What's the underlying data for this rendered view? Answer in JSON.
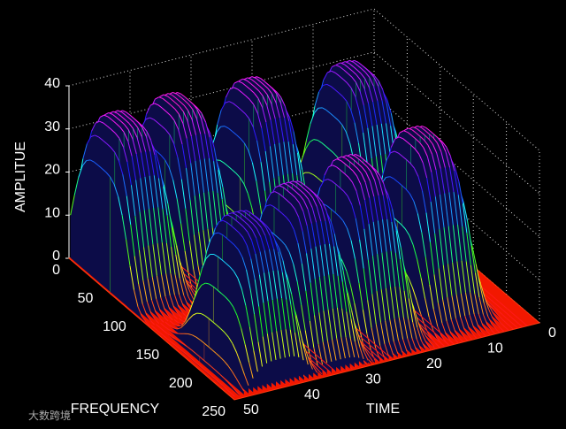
{
  "chart_data": {
    "type": "mesh3d",
    "xlabel": "TIME",
    "ylabel": "FREQUENCY",
    "zlabel": "AMPLITUE",
    "xlim": [
      0,
      50
    ],
    "xticks": [
      0,
      10,
      20,
      30,
      40,
      50
    ],
    "ylim": [
      0,
      250
    ],
    "yticks": [
      0,
      50,
      100,
      150,
      200,
      250
    ],
    "zlim": [
      0,
      40
    ],
    "zticks": [
      0,
      10,
      20,
      30,
      40
    ],
    "grid": true,
    "peaks": [
      {
        "x": 46,
        "y": 45,
        "z": 37
      },
      {
        "x": 37,
        "y": 45,
        "z": 38
      },
      {
        "x": 24,
        "y": 45,
        "z": 37
      },
      {
        "x": 8,
        "y": 45,
        "z": 35
      },
      {
        "x": 42,
        "y": 195,
        "z": 32
      },
      {
        "x": 33,
        "y": 190,
        "z": 35
      },
      {
        "x": 23,
        "y": 185,
        "z": 37
      },
      {
        "x": 11,
        "y": 175,
        "z": 38
      }
    ],
    "watermark": "大数跨境"
  }
}
